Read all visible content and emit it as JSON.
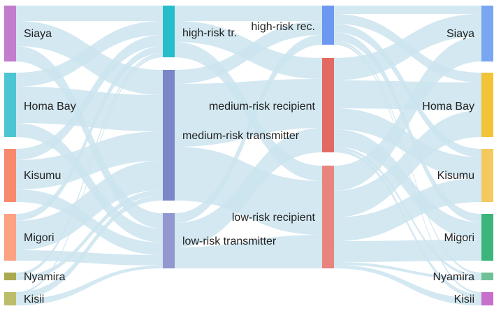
{
  "columns": [
    {
      "nodes": [
        {
          "id": "src-siaya",
          "label": "Siaya",
          "color": "#c27dcc"
        },
        {
          "id": "src-homabay",
          "label": "Homa Bay",
          "color": "#4cc6d2"
        },
        {
          "id": "src-kisumu",
          "label": "Kisumu",
          "color": "#f78a6d"
        },
        {
          "id": "src-migori",
          "label": "Migori",
          "color": "#fca182"
        },
        {
          "id": "src-nyamira",
          "label": "Nyamira",
          "color": "#a9a94e"
        },
        {
          "id": "src-kisii",
          "label": "Kisii",
          "color": "#bcbd6a"
        }
      ]
    },
    {
      "nodes": [
        {
          "id": "tr-high",
          "label": "high-risk tr.",
          "color": "#26becb"
        },
        {
          "id": "tr-med",
          "label": "medium-risk transmitter",
          "color": "#7b86c8"
        },
        {
          "id": "tr-low",
          "label": "low-risk transmitter",
          "color": "#9397cf"
        }
      ]
    },
    {
      "nodes": [
        {
          "id": "rec-high",
          "label": "high-risk rec.",
          "color": "#6c99ef"
        },
        {
          "id": "rec-med",
          "label": "medium-risk recipient",
          "color": "#e26a62"
        },
        {
          "id": "rec-low",
          "label": "low-risk recipient",
          "color": "#e9847c"
        }
      ]
    },
    {
      "nodes": [
        {
          "id": "dst-siaya",
          "label": "Siaya",
          "color": "#79a6f0"
        },
        {
          "id": "dst-homabay",
          "label": "Homa Bay",
          "color": "#f2c335"
        },
        {
          "id": "dst-kisumu",
          "label": "Kisumu",
          "color": "#f4ca5f"
        },
        {
          "id": "dst-migori",
          "label": "Migori",
          "color": "#3bb57a"
        },
        {
          "id": "dst-nyamira",
          "label": "Nyamira",
          "color": "#6ec197"
        },
        {
          "id": "dst-kisii",
          "label": "Kisii",
          "color": "#c86fcc"
        }
      ]
    }
  ],
  "link_color": "#cbe4ef"
}
